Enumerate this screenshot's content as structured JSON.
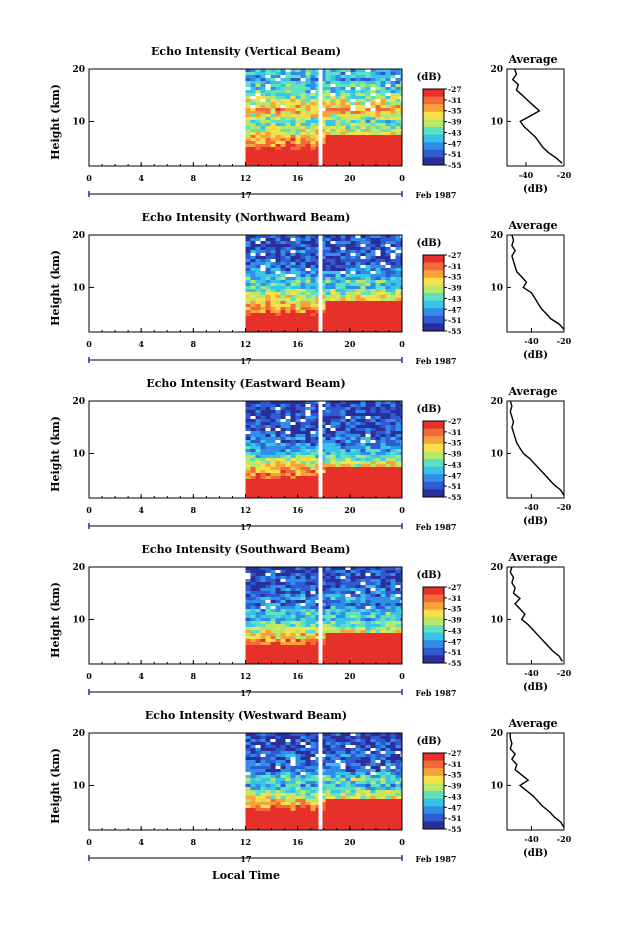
{
  "figure": {
    "ylabel": "Height (km)",
    "xlabel": "Local Time",
    "date_label": "Feb 1987",
    "day_label": "17",
    "colorbar_unit": "(dB)",
    "colorbar_ticks": [
      "-27",
      "-31",
      "-35",
      "-39",
      "-43",
      "-47",
      "-51",
      "-55"
    ],
    "colormap": [
      "#2b2f9b",
      "#2f5ad1",
      "#2f8fe8",
      "#38c4e8",
      "#5fe0c0",
      "#b8e86a",
      "#f7e04a",
      "#f9a13a",
      "#f26a3a",
      "#e8302a"
    ],
    "avg_title": "Average",
    "avg_xlabel": "(dB)"
  },
  "chart_data": [
    {
      "type": "heatmap",
      "title": "Echo Intensity (Vertical Beam)",
      "x_ticks": [
        "0",
        "4",
        "8",
        "12",
        "16",
        "20",
        "0"
      ],
      "y_ticks": [
        "20",
        "10"
      ],
      "xlim": [
        0,
        24
      ],
      "ylim": [
        1.5,
        20
      ],
      "data_start_hour": 12,
      "gap_hours": [
        17.6,
        17.9
      ],
      "colorbar_range_db": [
        -55,
        -27
      ],
      "profile": {
        "type": "line",
        "x_ticks": [
          "-40",
          "-20"
        ],
        "xlim": [
          -50,
          -20
        ],
        "height_km": [
          2,
          3,
          4,
          5,
          6,
          7,
          8,
          9,
          10,
          11,
          12,
          13,
          14,
          15,
          16,
          17,
          18,
          19,
          20
        ],
        "db": [
          -21,
          -24,
          -28,
          -31,
          -33,
          -35,
          -38,
          -41,
          -43,
          -38,
          -33,
          -36,
          -39,
          -42,
          -45,
          -44,
          -47,
          -45,
          -46
        ]
      }
    },
    {
      "type": "heatmap",
      "title": "Echo Intensity (Northward Beam)",
      "x_ticks": [
        "0",
        "4",
        "8",
        "12",
        "16",
        "20",
        "0"
      ],
      "y_ticks": [
        "20",
        "10"
      ],
      "xlim": [
        0,
        24
      ],
      "ylim": [
        1.5,
        20
      ],
      "data_start_hour": 12,
      "gap_hours": [
        17.6,
        17.9
      ],
      "colorbar_range_db": [
        -55,
        -27
      ],
      "profile": {
        "type": "line",
        "x_ticks": [
          "-40",
          "-20"
        ],
        "xlim": [
          -55,
          -20
        ],
        "height_km": [
          2,
          3,
          4,
          5,
          6,
          7,
          8,
          9,
          10,
          11,
          12,
          13,
          14,
          15,
          16,
          17,
          18,
          19,
          20
        ],
        "db": [
          -20,
          -23,
          -28,
          -31,
          -34,
          -36,
          -38,
          -40,
          -45,
          -43,
          -46,
          -49,
          -50,
          -51,
          -52,
          -50,
          -52,
          -51,
          -52
        ]
      }
    },
    {
      "type": "heatmap",
      "title": "Echo Intensity (Eastward Beam)",
      "x_ticks": [
        "0",
        "4",
        "8",
        "12",
        "16",
        "20",
        "0"
      ],
      "y_ticks": [
        "20",
        "10"
      ],
      "xlim": [
        0,
        24
      ],
      "ylim": [
        1.5,
        20
      ],
      "data_start_hour": 12,
      "gap_hours": [
        17.6,
        17.9
      ],
      "colorbar_range_db": [
        -55,
        -27
      ],
      "profile": {
        "type": "line",
        "x_ticks": [
          "-40",
          "-20"
        ],
        "xlim": [
          -55,
          -20
        ],
        "height_km": [
          2,
          3,
          4,
          5,
          6,
          7,
          8,
          9,
          10,
          11,
          12,
          13,
          14,
          15,
          16,
          17,
          18,
          19,
          20
        ],
        "db": [
          -20,
          -22,
          -26,
          -29,
          -32,
          -35,
          -38,
          -41,
          -45,
          -47,
          -49,
          -50,
          -51,
          -52,
          -51,
          -52,
          -53,
          -52,
          -53
        ]
      }
    },
    {
      "type": "heatmap",
      "title": "Echo Intensity (Southward Beam)",
      "x_ticks": [
        "0",
        "4",
        "8",
        "12",
        "16",
        "20",
        "0"
      ],
      "y_ticks": [
        "20",
        "10"
      ],
      "xlim": [
        0,
        24
      ],
      "ylim": [
        1.5,
        20
      ],
      "data_start_hour": 12,
      "gap_hours": [
        17.6,
        17.9
      ],
      "colorbar_range_db": [
        -55,
        -27
      ],
      "profile": {
        "type": "line",
        "x_ticks": [
          "-40",
          "-20"
        ],
        "xlim": [
          -55,
          -20
        ],
        "height_km": [
          2,
          3,
          4,
          5,
          6,
          7,
          8,
          9,
          10,
          11,
          12,
          13,
          14,
          15,
          16,
          17,
          18,
          19,
          20
        ],
        "db": [
          -21,
          -23,
          -27,
          -30,
          -33,
          -36,
          -39,
          -42,
          -46,
          -44,
          -47,
          -50,
          -47,
          -51,
          -50,
          -52,
          -51,
          -53,
          -52
        ]
      }
    },
    {
      "type": "heatmap",
      "title": "Echo Intensity (Westward Beam)",
      "x_ticks": [
        "0",
        "4",
        "8",
        "12",
        "16",
        "20",
        "0"
      ],
      "y_ticks": [
        "20",
        "10"
      ],
      "xlim": [
        0,
        24
      ],
      "ylim": [
        1.5,
        20
      ],
      "data_start_hour": 12,
      "gap_hours": [
        17.6,
        17.9
      ],
      "colorbar_range_db": [
        -55,
        -27
      ],
      "profile": {
        "type": "line",
        "x_ticks": [
          "-40",
          "-20"
        ],
        "xlim": [
          -55,
          -20
        ],
        "height_km": [
          2,
          3,
          4,
          5,
          6,
          7,
          8,
          9,
          10,
          11,
          12,
          13,
          14,
          15,
          16,
          17,
          18,
          19,
          20
        ],
        "db": [
          -20,
          -22,
          -26,
          -29,
          -33,
          -36,
          -39,
          -43,
          -47,
          -42,
          -46,
          -50,
          -49,
          -52,
          -50,
          -53,
          -52,
          -53,
          -53
        ]
      }
    }
  ]
}
